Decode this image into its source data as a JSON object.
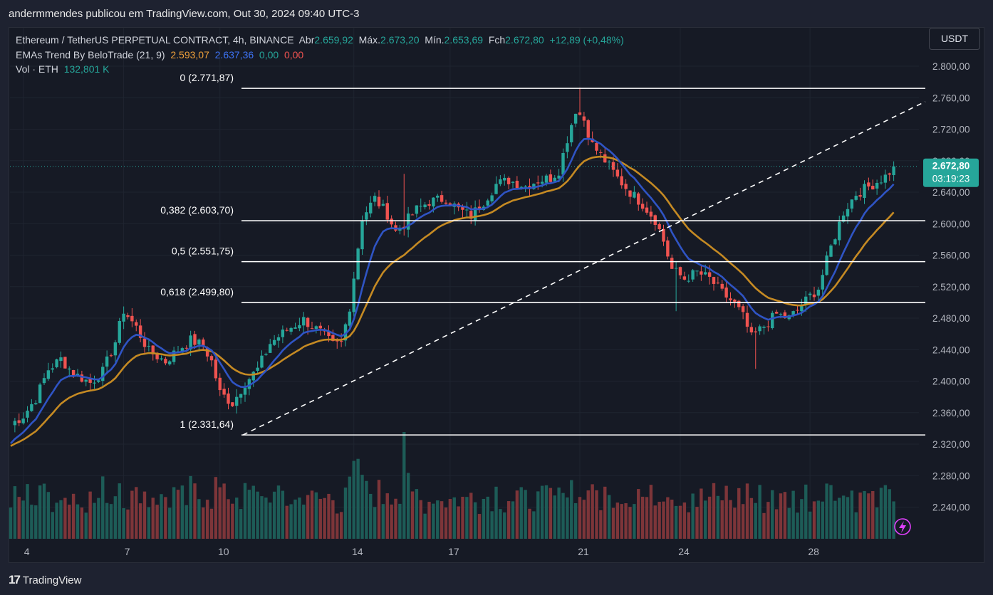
{
  "header": {
    "publisher": "andermmendes publicou em TradingView.com, Out 30, 2024 09:40 UTC-3"
  },
  "legend": {
    "symbol": "Ethereum / TetherUS PERPETUAL CONTRACT, 4h, BINANCE",
    "open_label": "Abr",
    "open": "2.659,92",
    "high_label": "Máx.",
    "high": "2.673,20",
    "low_label": "Mín.",
    "low": "2.653,69",
    "close_label": "Fch",
    "close": "2.672,80",
    "change": "+12,89 (+0,48%)",
    "ema_title": "EMAs Trend By BeloTrade (21, 9)",
    "ema1": "2.593,07",
    "ema2": "2.637,36",
    "ema3": "0,00",
    "ema4": "0,00",
    "vol_title": "Vol · ETH",
    "vol": "132,801 K"
  },
  "currency_button": "USDT",
  "price_tag": {
    "price": "2.672,80",
    "countdown": "03:19:23"
  },
  "footer": {
    "brand": "TradingView",
    "logo": "17"
  },
  "colors": {
    "up": "#26a69a",
    "down": "#ef5350",
    "ema_fast": "#2f54c4",
    "ema_slow": "#c58a23",
    "up_vol": "#1d5c57",
    "down_vol": "#7d3539",
    "grid": "#1f2430",
    "axis_text": "#b2b5be"
  },
  "chart_data": {
    "type": "candlestick",
    "title": "Ethereum / TetherUS PERPETUAL CONTRACT, 4h, BINANCE",
    "ylim": [
      2210,
      2820
    ],
    "y_ticks": [
      2240,
      2280,
      2320,
      2360,
      2400,
      2440,
      2480,
      2520,
      2560,
      2600,
      2640,
      2680,
      2720,
      2760,
      2800
    ],
    "y_tick_labels": [
      "2.240,00",
      "2.280,00",
      "2.320,00",
      "2.360,00",
      "2.400,00",
      "2.440,00",
      "2.480,00",
      "2.520,00",
      "2.560,00",
      "2.600,00",
      "2.640,00",
      "2.680,00",
      "2.720,00",
      "2.760,00",
      "2.800,00"
    ],
    "x_tick_index": [
      3,
      27,
      50,
      82,
      105,
      136,
      160,
      191
    ],
    "x_tick_labels": [
      "4",
      "7",
      "10",
      "14",
      "17",
      "21",
      "24",
      "28"
    ],
    "last_price": 2672.8,
    "fibonacci": [
      {
        "level": "0",
        "label": "0 (2.771,87)",
        "price": 2771.87
      },
      {
        "level": "0.382",
        "label": "0,382 (2.603,70)",
        "price": 2603.7
      },
      {
        "level": "0.5",
        "label": "0,5 (2.551,75)",
        "price": 2551.75
      },
      {
        "level": "0.618",
        "label": "0,618 (2.499,80)",
        "price": 2499.8
      },
      {
        "level": "1",
        "label": "1 (2.331,64)",
        "price": 2331.64
      }
    ],
    "trendline": {
      "start": {
        "index": 54,
        "price": 2331.64
      },
      "end": {
        "index": 214,
        "price": 2755
      }
    },
    "anchors": [
      [
        0,
        2345
      ],
      [
        3,
        2356
      ],
      [
        6,
        2378
      ],
      [
        9,
        2415
      ],
      [
        12,
        2428
      ],
      [
        15,
        2410
      ],
      [
        19,
        2398
      ],
      [
        22,
        2412
      ],
      [
        25,
        2450
      ],
      [
        27,
        2490
      ],
      [
        30,
        2468
      ],
      [
        33,
        2438
      ],
      [
        37,
        2425
      ],
      [
        40,
        2440
      ],
      [
        43,
        2452
      ],
      [
        46,
        2445
      ],
      [
        48,
        2425
      ],
      [
        50,
        2385
      ],
      [
        53,
        2372
      ],
      [
        56,
        2398
      ],
      [
        59,
        2415
      ],
      [
        62,
        2448
      ],
      [
        66,
        2465
      ],
      [
        70,
        2478
      ],
      [
        74,
        2462
      ],
      [
        77,
        2446
      ],
      [
        79,
        2448
      ],
      [
        81,
        2495
      ],
      [
        84,
        2608
      ],
      [
        87,
        2632
      ],
      [
        90,
        2612
      ],
      [
        92,
        2590
      ],
      [
        94,
        2600
      ],
      [
        97,
        2618
      ],
      [
        100,
        2628
      ],
      [
        104,
        2632
      ],
      [
        107,
        2618
      ],
      [
        110,
        2610
      ],
      [
        113,
        2628
      ],
      [
        116,
        2650
      ],
      [
        119,
        2655
      ],
      [
        123,
        2648
      ],
      [
        126,
        2655
      ],
      [
        129,
        2658
      ],
      [
        131,
        2668
      ],
      [
        133,
        2708
      ],
      [
        135,
        2745
      ],
      [
        137,
        2732
      ],
      [
        139,
        2700
      ],
      [
        142,
        2680
      ],
      [
        145,
        2658
      ],
      [
        148,
        2640
      ],
      [
        151,
        2625
      ],
      [
        154,
        2605
      ],
      [
        156,
        2578
      ],
      [
        158,
        2542
      ],
      [
        161,
        2530
      ],
      [
        164,
        2538
      ],
      [
        167,
        2530
      ],
      [
        170,
        2512
      ],
      [
        173,
        2498
      ],
      [
        175,
        2482
      ],
      [
        177,
        2455
      ],
      [
        180,
        2470
      ],
      [
        183,
        2485
      ],
      [
        186,
        2480
      ],
      [
        188,
        2490
      ],
      [
        191,
        2508
      ],
      [
        193,
        2518
      ],
      [
        196,
        2570
      ],
      [
        199,
        2615
      ],
      [
        202,
        2638
      ],
      [
        206,
        2650
      ],
      [
        209,
        2660
      ],
      [
        211,
        2672
      ]
    ],
    "volume_note": "Volume histogram with spikes near the 14th (~1200) and the big drop days",
    "vol_ylim": [
      0,
      1400
    ]
  }
}
